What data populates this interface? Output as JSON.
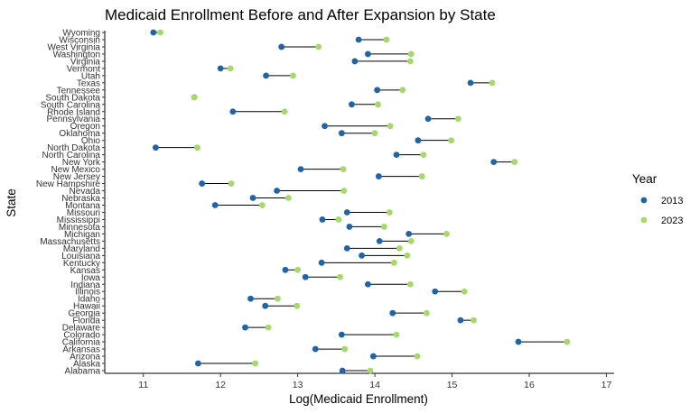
{
  "chart_data": {
    "type": "scatter",
    "title": "Medicaid Enrollment Before and After Expansion by State",
    "xlabel": "Log(Medicaid Enrollment)",
    "ylabel": "State",
    "xlim": [
      10.5,
      17.1
    ],
    "xticks": [
      11,
      12,
      13,
      14,
      15,
      16,
      17
    ],
    "grid": false,
    "legend": {
      "title": "Year",
      "position": "right",
      "entries": [
        "2013",
        "2023"
      ]
    },
    "series": [
      {
        "name": "2013",
        "color": "#1f63a8"
      },
      {
        "name": "2023",
        "color": "#a6d96a"
      }
    ],
    "categories": [
      "Alabama",
      "Alaska",
      "Arizona",
      "Arkansas",
      "California",
      "Colorado",
      "Delaware",
      "Florida",
      "Georgia",
      "Hawaii",
      "Idaho",
      "Illinois",
      "Indiana",
      "Iowa",
      "Kansas",
      "Kentucky",
      "Louisiana",
      "Maryland",
      "Massachusetts",
      "Michigan",
      "Minnesota",
      "Mississippi",
      "Missouri",
      "Montana",
      "Nebraska",
      "Nevada",
      "New Hampshire",
      "New Jersey",
      "New Mexico",
      "New York",
      "North Carolina",
      "North Dakota",
      "Ohio",
      "Oklahoma",
      "Oregon",
      "Pennsylvania",
      "Rhode Island",
      "South Carolina",
      "South Dakota",
      "Tennessee",
      "Texas",
      "Utah",
      "Vermont",
      "Virginia",
      "Washington",
      "West Virginia",
      "Wisconsin",
      "Wyoming"
    ],
    "values_2013": [
      13.58,
      11.71,
      13.98,
      13.23,
      15.86,
      13.57,
      12.32,
      15.11,
      14.23,
      12.58,
      12.39,
      14.78,
      13.91,
      13.1,
      12.84,
      13.31,
      13.83,
      13.64,
      14.06,
      14.44,
      13.67,
      13.32,
      13.64,
      11.93,
      12.42,
      12.73,
      11.76,
      14.05,
      13.04,
      15.54,
      14.28,
      11.16,
      14.56,
      13.57,
      13.35,
      14.69,
      12.16,
      13.7,
      11.66,
      14.03,
      15.24,
      12.59,
      12.0,
      13.74,
      13.91,
      12.79,
      13.79,
      11.13
    ],
    "values_2023": [
      13.94,
      12.45,
      14.55,
      13.61,
      16.49,
      14.28,
      12.62,
      15.28,
      14.67,
      12.99,
      12.74,
      15.16,
      14.46,
      13.55,
      13.0,
      14.25,
      14.42,
      14.32,
      14.47,
      14.93,
      14.12,
      13.53,
      14.19,
      12.54,
      12.88,
      13.6,
      12.14,
      14.61,
      13.59,
      15.81,
      14.63,
      11.7,
      14.99,
      14.0,
      14.2,
      15.08,
      12.83,
      14.04,
      11.66,
      14.36,
      15.52,
      12.94,
      12.13,
      14.46,
      14.47,
      13.27,
      14.15,
      11.22
    ]
  }
}
